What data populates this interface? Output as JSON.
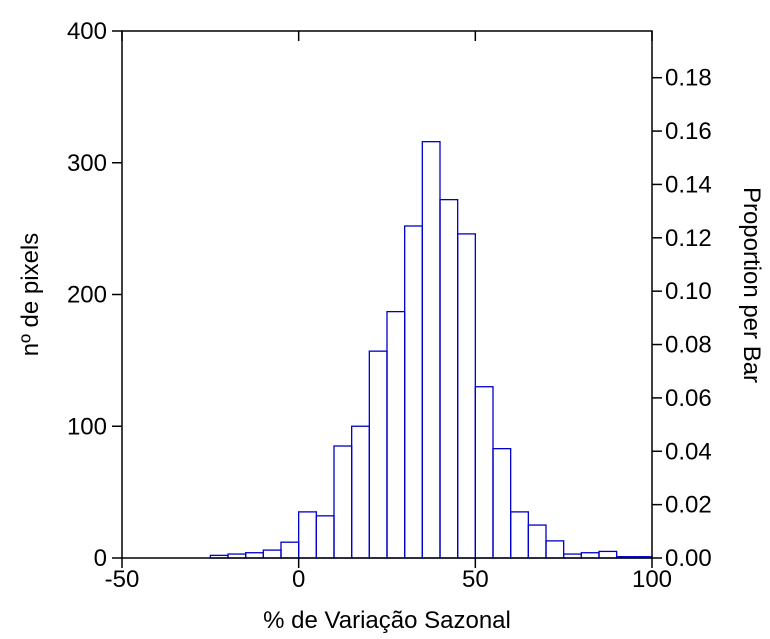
{
  "chart_data": {
    "type": "bar",
    "xlabel": "% de Variação Sazonal",
    "ylabel": "nº de pixels",
    "ylabel_right": "Proportion per Bar",
    "xlim": [
      -50,
      100
    ],
    "ylim": [
      0,
      400
    ],
    "y2lim": [
      0,
      0.1975
    ],
    "x_ticks": [
      "-50",
      "0",
      "50",
      "100"
    ],
    "x_tick_values": [
      -50,
      0,
      50,
      100
    ],
    "y_ticks": [
      "0",
      "100",
      "200",
      "300",
      "400"
    ],
    "y_tick_values": [
      0,
      100,
      200,
      300,
      400
    ],
    "y2_ticks": [
      "0.00",
      "0.02",
      "0.04",
      "0.06",
      "0.08",
      "0.10",
      "0.12",
      "0.14",
      "0.16",
      "0.18"
    ],
    "y2_tick_values": [
      0,
      0.02,
      0.04,
      0.06,
      0.08,
      0.1,
      0.12,
      0.14,
      0.16,
      0.18
    ],
    "bin_width": 5,
    "bins": [
      {
        "start": -50,
        "count": 0
      },
      {
        "start": -45,
        "count": 0
      },
      {
        "start": -40,
        "count": 0
      },
      {
        "start": -35,
        "count": 0
      },
      {
        "start": -30,
        "count": 0
      },
      {
        "start": -25,
        "count": 2
      },
      {
        "start": -20,
        "count": 3
      },
      {
        "start": -15,
        "count": 4
      },
      {
        "start": -10,
        "count": 6
      },
      {
        "start": -5,
        "count": 12
      },
      {
        "start": 0,
        "count": 35
      },
      {
        "start": 5,
        "count": 32
      },
      {
        "start": 10,
        "count": 85
      },
      {
        "start": 15,
        "count": 100
      },
      {
        "start": 20,
        "count": 157
      },
      {
        "start": 25,
        "count": 187
      },
      {
        "start": 30,
        "count": 252
      },
      {
        "start": 35,
        "count": 316
      },
      {
        "start": 40,
        "count": 272
      },
      {
        "start": 45,
        "count": 246
      },
      {
        "start": 50,
        "count": 130
      },
      {
        "start": 55,
        "count": 83
      },
      {
        "start": 60,
        "count": 35
      },
      {
        "start": 65,
        "count": 25
      },
      {
        "start": 70,
        "count": 13
      },
      {
        "start": 75,
        "count": 3
      },
      {
        "start": 80,
        "count": 4
      },
      {
        "start": 85,
        "count": 5
      },
      {
        "start": 90,
        "count": 1
      },
      {
        "start": 95,
        "count": 1
      }
    ],
    "bar_color": "#0000cc",
    "axis_color": "#000000"
  }
}
